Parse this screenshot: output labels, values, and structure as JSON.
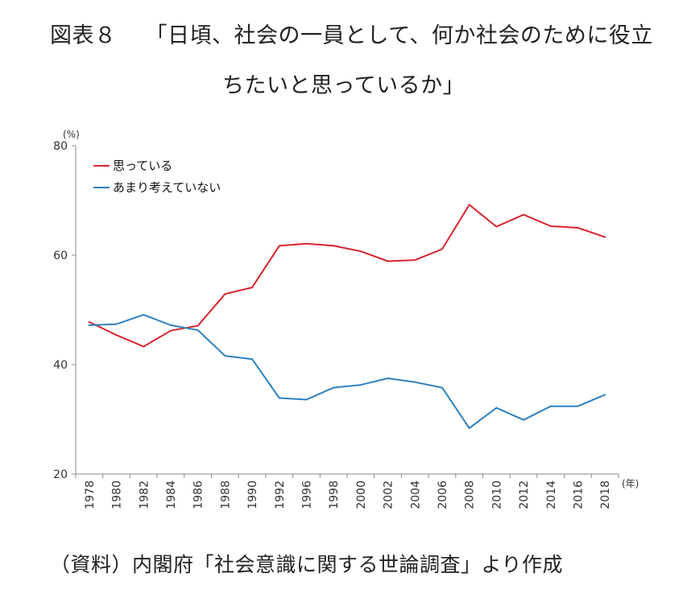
{
  "title": {
    "label": "図表８",
    "line1": "「日頃、社会の一員として、何か社会のために役立",
    "line2": "ちたいと思っているか」"
  },
  "source": "（資料）内閣府「社会意識に関する世論調査」より作成",
  "chart_data": {
    "type": "line",
    "title": "日頃、社会の一員として、何か社会のために役立ちたいと思っているか",
    "x": [
      "1978",
      "1980",
      "1982",
      "1984",
      "1986",
      "1988",
      "1990",
      "1992",
      "1996",
      "1998",
      "2000",
      "2002",
      "2004",
      "2006",
      "2008",
      "2010",
      "2012",
      "2014",
      "2016",
      "2018"
    ],
    "y_unit": "(%)",
    "x_unit": "(年)",
    "ylim": [
      20,
      80
    ],
    "yticks": [
      20,
      40,
      60,
      80
    ],
    "grid": false,
    "legend_position": "top-left",
    "series": [
      {
        "name": "思っている",
        "color": "#d9232e",
        "values": [
          47.8,
          45.4,
          43.3,
          46.2,
          47.1,
          52.9,
          54.1,
          61.7,
          62.1,
          61.7,
          60.7,
          58.9,
          59.1,
          61.1,
          69.2,
          65.2,
          67.4,
          65.3,
          65.0,
          63.3
        ]
      },
      {
        "name": "あまり考えていない",
        "color": "#2e80c0",
        "values": [
          47.2,
          47.4,
          49.1,
          47.2,
          46.3,
          41.6,
          41.0,
          33.9,
          33.6,
          35.8,
          36.3,
          37.5,
          36.8,
          35.8,
          28.4,
          32.1,
          29.9,
          32.4,
          32.4,
          34.5
        ]
      }
    ]
  }
}
